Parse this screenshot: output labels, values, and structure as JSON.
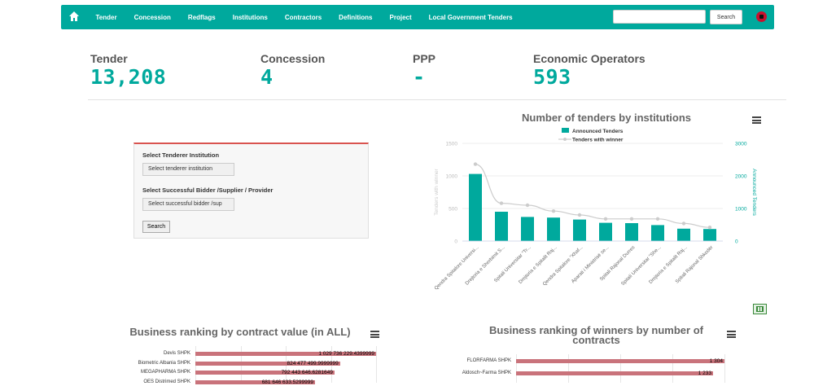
{
  "nav": {
    "items": [
      "Tender",
      "Concession",
      "Redflags",
      "Institutions",
      "Contractors",
      "Definitions",
      "Project",
      "Local Government Tenders"
    ],
    "search_placeholder": "",
    "search_button": "Search"
  },
  "stats": [
    {
      "label": "Tender",
      "value": "13,208"
    },
    {
      "label": "Concession",
      "value": "4"
    },
    {
      "label": "PPP",
      "value": "-"
    },
    {
      "label": "Economic Operators",
      "value": "593"
    }
  ],
  "form": {
    "institution_label": "Select Tenderer Institution",
    "institution_select": "Select tenderer institution",
    "bidder_label": "Select Successful Bidder /Supplier / Provider",
    "bidder_select": "Select successful bidder /sup",
    "search_button": "Search"
  },
  "chart_data": [
    {
      "type": "bar",
      "title": "Number of tenders by institutions",
      "categories": [
        "Qendra Spitalore Universi...",
        "Drejtoria e Sherbimit S...",
        "Spitali Universitar \"Tr...",
        "Drejtoria e Spitalit Raj...",
        "Qendra Spitalore \"Xhaf...",
        "Aparati i Ministrisë se...",
        "Spitali Rajonal Durres",
        "Spitali Universitar \"She...",
        "Drejtoria e Spitalit Raj...",
        "Spitali Rajonal Shkodër"
      ],
      "series": [
        {
          "name": "Announced Tenders",
          "axis": "right",
          "values": [
            2060,
            900,
            740,
            720,
            660,
            560,
            550,
            490,
            380,
            370
          ]
        },
        {
          "name": "Tenders with winner",
          "axis": "left",
          "values": [
            1180,
            580,
            550,
            460,
            400,
            340,
            340,
            340,
            270,
            210
          ]
        }
      ],
      "ylabel_left": "Tenders with winner",
      "ylabel_right": "Announced Tenders",
      "left_ticks": [
        "0",
        "500",
        "1000",
        "1500"
      ],
      "right_ticks": [
        "0",
        "1000",
        "2000",
        "3000"
      ],
      "ylim_left": [
        0,
        1500
      ],
      "ylim_right": [
        0,
        3000
      ],
      "legend": "top"
    },
    {
      "type": "bar",
      "orientation": "horizontal",
      "title": "Business ranking by contract value (in ALL)",
      "categories": [
        "Devis SHPK",
        "Biometric Albania SHPK",
        "MEGAPHARMA SHPK",
        "OES Distrimed SHPK"
      ],
      "values": [
        1029736229.4399999,
        824477499.9999999,
        792443646.6281649,
        681646633.5299999
      ],
      "labels": [
        "1 029 736 229.4399999",
        "824 477 499.9999999",
        "792 443 646.6281649",
        "681 646 633.5299999"
      ]
    },
    {
      "type": "bar",
      "orientation": "horizontal",
      "title": "Business ranking of winners by number of contracts",
      "categories": [
        "FLORFARMA SHPK",
        "Aldosch~Farma SHPK"
      ],
      "values": [
        1304,
        1233
      ],
      "labels": [
        "1 304",
        "1 233"
      ]
    }
  ],
  "colors": {
    "brand": "#00a99d",
    "accent_red": "#d9534f",
    "rank_bar": "#c9737b",
    "line": "#cccccc"
  }
}
